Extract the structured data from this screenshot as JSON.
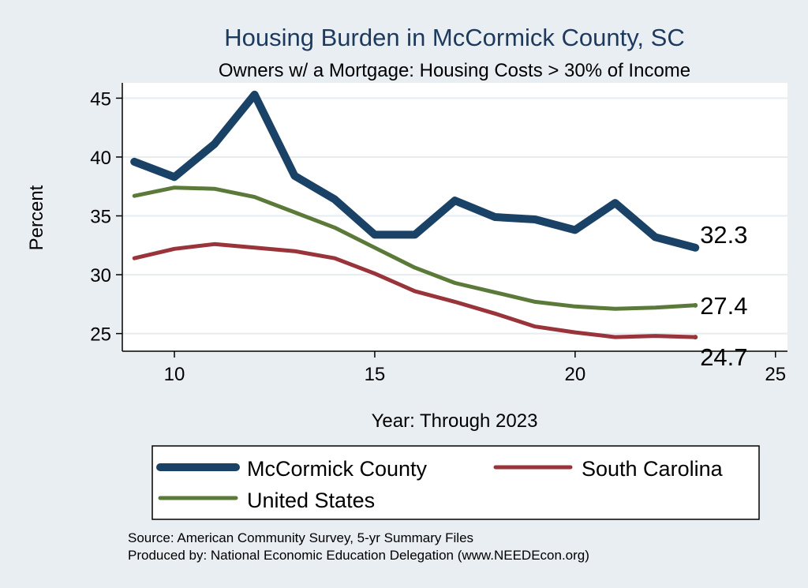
{
  "chart_data": {
    "type": "line",
    "title": "Housing Burden in McCormick County, SC",
    "subtitle": "Owners w/ a Mortgage: Housing Costs > 30% of Income",
    "xlabel": "Year: Through 2023",
    "ylabel": "Percent",
    "xlim": [
      8.7,
      25.3
    ],
    "ylim": [
      23.5,
      46.3
    ],
    "xticks": [
      10,
      15,
      20,
      25
    ],
    "yticks": [
      25,
      30,
      35,
      40,
      45
    ],
    "grid": true,
    "legend_position": "bottom",
    "series": [
      {
        "name": "McCormick County",
        "color": "#1a4266",
        "x": [
          9,
          10,
          11,
          12,
          13,
          14,
          15,
          16,
          17,
          18,
          19,
          20,
          21,
          22,
          23
        ],
        "values": [
          39.6,
          38.3,
          41.1,
          45.3,
          38.4,
          36.4,
          33.4,
          33.4,
          36.3,
          34.9,
          34.7,
          33.8,
          36.1,
          33.2,
          32.3
        ],
        "end_label": "32.3"
      },
      {
        "name": "South Carolina",
        "color": "#98343a",
        "x": [
          9,
          10,
          11,
          12,
          13,
          14,
          15,
          16,
          17,
          18,
          19,
          20,
          21,
          22,
          23
        ],
        "values": [
          31.4,
          32.2,
          32.6,
          32.3,
          32.0,
          31.4,
          30.1,
          28.6,
          27.7,
          26.7,
          25.6,
          25.1,
          24.7,
          24.8,
          24.7
        ],
        "end_label": "24.7"
      },
      {
        "name": "United States",
        "color": "#5b7a3a",
        "x": [
          9,
          10,
          11,
          12,
          13,
          14,
          15,
          16,
          17,
          18,
          19,
          20,
          21,
          22,
          23
        ],
        "values": [
          36.7,
          37.4,
          37.3,
          36.6,
          35.3,
          34.0,
          32.3,
          30.6,
          29.3,
          28.5,
          27.7,
          27.3,
          27.1,
          27.2,
          27.4
        ],
        "end_label": "27.4"
      }
    ],
    "notes": [
      "Source: American Community Survey, 5-yr Summary Files",
      "Produced by: National Economic Education Delegation (www.NEEDEcon.org)"
    ]
  }
}
